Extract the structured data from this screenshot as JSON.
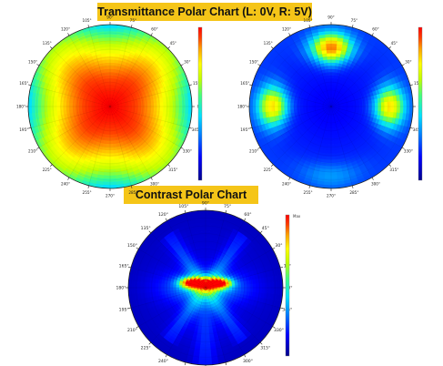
{
  "colors": {
    "title_bg": "#f5c518",
    "scale": [
      "#00008b",
      "#0000ff",
      "#0080ff",
      "#00e0ff",
      "#40ff80",
      "#c0ff00",
      "#ffff00",
      "#ffa000",
      "#ff4000",
      "#ff0000"
    ]
  },
  "titles": {
    "transmittance": "Transmittance Polar Chart (L: 0V, R: 5V)",
    "contrast": "Contrast Polar Chart"
  },
  "chart_data": [
    {
      "type": "heatmap",
      "subtype": "polar",
      "panel": "transmittance-left",
      "angle_labels": [
        "90°",
        "75°",
        "60°",
        "45°",
        "30°",
        "15°",
        "0°",
        "345°",
        "330°",
        "315°",
        "300°",
        "285°",
        "270°",
        "255°",
        "240°",
        "225°",
        "210°",
        "195°",
        "180°",
        "165°",
        "150°",
        "135°",
        "120°",
        "105°"
      ],
      "field": {
        "kind": "dome",
        "peak": 1.0,
        "edge": 0.45
      },
      "colorbar": "vertical-right",
      "grid": true
    },
    {
      "type": "heatmap",
      "subtype": "polar",
      "panel": "transmittance-right",
      "angle_labels": [
        "90°",
        "75°",
        "60°",
        "45°",
        "30°",
        "15°",
        "0°",
        "345°",
        "330°",
        "315°",
        "300°",
        "285°",
        "270°",
        "255°",
        "240°",
        "225°",
        "210°",
        "195°",
        "180°",
        "165°",
        "150°",
        "135°",
        "120°",
        "105°"
      ],
      "field": {
        "kind": "lobes",
        "lobes_at_deg": [
          90,
          0,
          180
        ]
      },
      "colorbar": "vertical-right",
      "grid": true
    },
    {
      "type": "heatmap",
      "subtype": "polar",
      "panel": "contrast",
      "angle_labels": [
        "90°",
        "75°",
        "60°",
        "45°",
        "30°",
        "15°",
        "0°",
        "345°",
        "330°",
        "315°",
        "300°",
        "285°",
        "270°",
        "255°",
        "240°",
        "225°",
        "210°",
        "195°",
        "180°",
        "165°",
        "150°",
        "135°",
        "120°",
        "105°"
      ],
      "field": {
        "kind": "contrast",
        "hotspot_near": "center-top"
      },
      "colorbar": "vertical-right",
      "colorbar_top_label": "Max",
      "grid": true
    }
  ]
}
